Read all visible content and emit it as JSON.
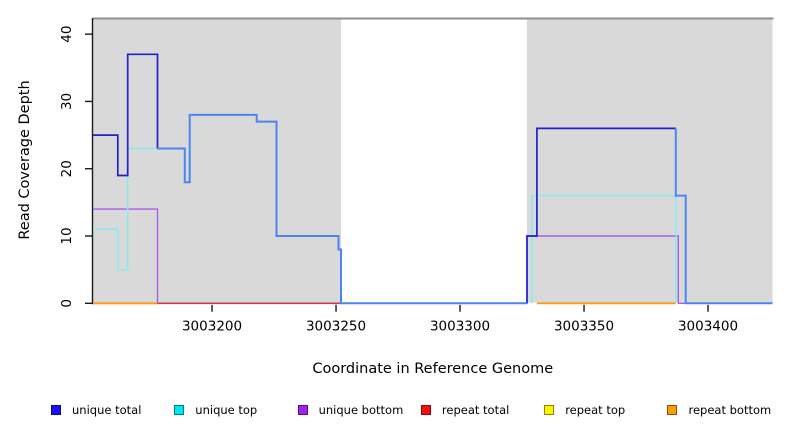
{
  "chart_data": {
    "type": "line",
    "subtype": "step-coverage-plot",
    "title": "",
    "xlabel": "Coordinate in Reference Genome",
    "ylabel": "Read Coverage Depth",
    "xlim": [
      3003152,
      3003426
    ],
    "ylim": [
      0,
      42.4
    ],
    "x_ticks": [
      "3003200",
      "3003250",
      "3003300",
      "3003350",
      "3003400"
    ],
    "x_tick_values": [
      3003200,
      3003250,
      3003300,
      3003350,
      3003400
    ],
    "y_ticks": [
      "0",
      "10",
      "20",
      "30",
      "40"
    ],
    "y_tick_values": [
      0,
      10,
      20,
      30,
      40
    ],
    "grid": false,
    "legend_position": "bottom",
    "plot_border_color": "#8f8f8f",
    "axis_color": "#1a1a1a",
    "background_regions": [
      {
        "name": "shaded-region-left",
        "x0": 3003152,
        "x1": 3003252,
        "color": "#d9d9d9"
      },
      {
        "name": "shaded-region-right",
        "x0": 3003327,
        "x1": 3003426,
        "color": "#d9d9d9"
      }
    ],
    "series": [
      {
        "name": "repeat-total",
        "color": "#cc3a58",
        "width": 1.6,
        "paths": [
          [
            [
              3003152,
              0
            ],
            [
              3003252,
              0
            ]
          ]
        ]
      },
      {
        "name": "repeat-top",
        "color": "#f5e600",
        "width": 1.3,
        "paths": [
          [
            [
              3003152,
              0
            ],
            [
              3003178,
              0
            ]
          ],
          [
            [
              3003331,
              0
            ],
            [
              3003387,
              0
            ]
          ]
        ]
      },
      {
        "name": "repeat-bottom",
        "color": "#ff9914",
        "width": 1.8,
        "paths": [
          [
            [
              3003152,
              0
            ],
            [
              3003178,
              0
            ]
          ],
          [
            [
              3003331,
              0
            ],
            [
              3003387,
              0
            ]
          ]
        ]
      },
      {
        "name": "unique-bottom",
        "color": "#ab5ce6",
        "width": 1.4,
        "paths": [
          [
            [
              3003152,
              14
            ],
            [
              3003178,
              14
            ],
            [
              3003178,
              0
            ]
          ],
          [
            [
              3003252,
              0
            ],
            [
              3003327,
              0
            ],
            [
              3003327,
              10
            ],
            [
              3003388,
              10
            ],
            [
              3003388,
              0
            ],
            [
              3003426,
              0
            ]
          ]
        ]
      },
      {
        "name": "unique-top",
        "color": "#8ce9ef",
        "width": 1.5,
        "paths": [
          [
            [
              3003152,
              11
            ],
            [
              3003162,
              11
            ],
            [
              3003162,
              5
            ],
            [
              3003166,
              5
            ],
            [
              3003166,
              23
            ],
            [
              3003178,
              23
            ]
          ],
          [
            [
              3003329,
              0
            ],
            [
              3003329,
              16
            ],
            [
              3003387,
              16
            ],
            [
              3003387,
              0
            ]
          ]
        ]
      },
      {
        "name": "unique-total-dark",
        "color": "#2121ce",
        "width": 1.7,
        "paths": [
          [
            [
              3003152,
              25
            ],
            [
              3003162,
              25
            ],
            [
              3003162,
              19
            ],
            [
              3003166,
              19
            ],
            [
              3003166,
              37
            ],
            [
              3003178,
              37
            ],
            [
              3003178,
              23
            ]
          ],
          [
            [
              3003327,
              0
            ],
            [
              3003327,
              10
            ],
            [
              3003331,
              10
            ],
            [
              3003331,
              26
            ],
            [
              3003387,
              26
            ]
          ]
        ]
      },
      {
        "name": "unique-total",
        "color": "#4b86f0",
        "width": 2,
        "paths": [
          [
            [
              3003178,
              23
            ],
            [
              3003189,
              23
            ],
            [
              3003189,
              18
            ],
            [
              3003191,
              18
            ],
            [
              3003191,
              28
            ],
            [
              3003218,
              28
            ],
            [
              3003218,
              27
            ],
            [
              3003226,
              27
            ],
            [
              3003226,
              10
            ],
            [
              3003251,
              10
            ],
            [
              3003251,
              8
            ],
            [
              3003252,
              8
            ],
            [
              3003252,
              0
            ],
            [
              3003327,
              0
            ]
          ],
          [
            [
              3003387,
              26
            ],
            [
              3003387,
              16
            ],
            [
              3003391,
              16
            ],
            [
              3003391,
              0
            ],
            [
              3003426,
              0
            ]
          ]
        ]
      }
    ]
  },
  "legend": {
    "items": [
      {
        "label": "unique total",
        "color": "#1a12f0"
      },
      {
        "label": "unique top",
        "color": "#00e5ee"
      },
      {
        "label": "unique bottom",
        "color": "#a020f0"
      },
      {
        "label": "repeat total",
        "color": "#f50f0f"
      },
      {
        "label": "repeat top",
        "color": "#fdf400"
      },
      {
        "label": "repeat bottom",
        "color": "#ff9a00"
      }
    ]
  }
}
